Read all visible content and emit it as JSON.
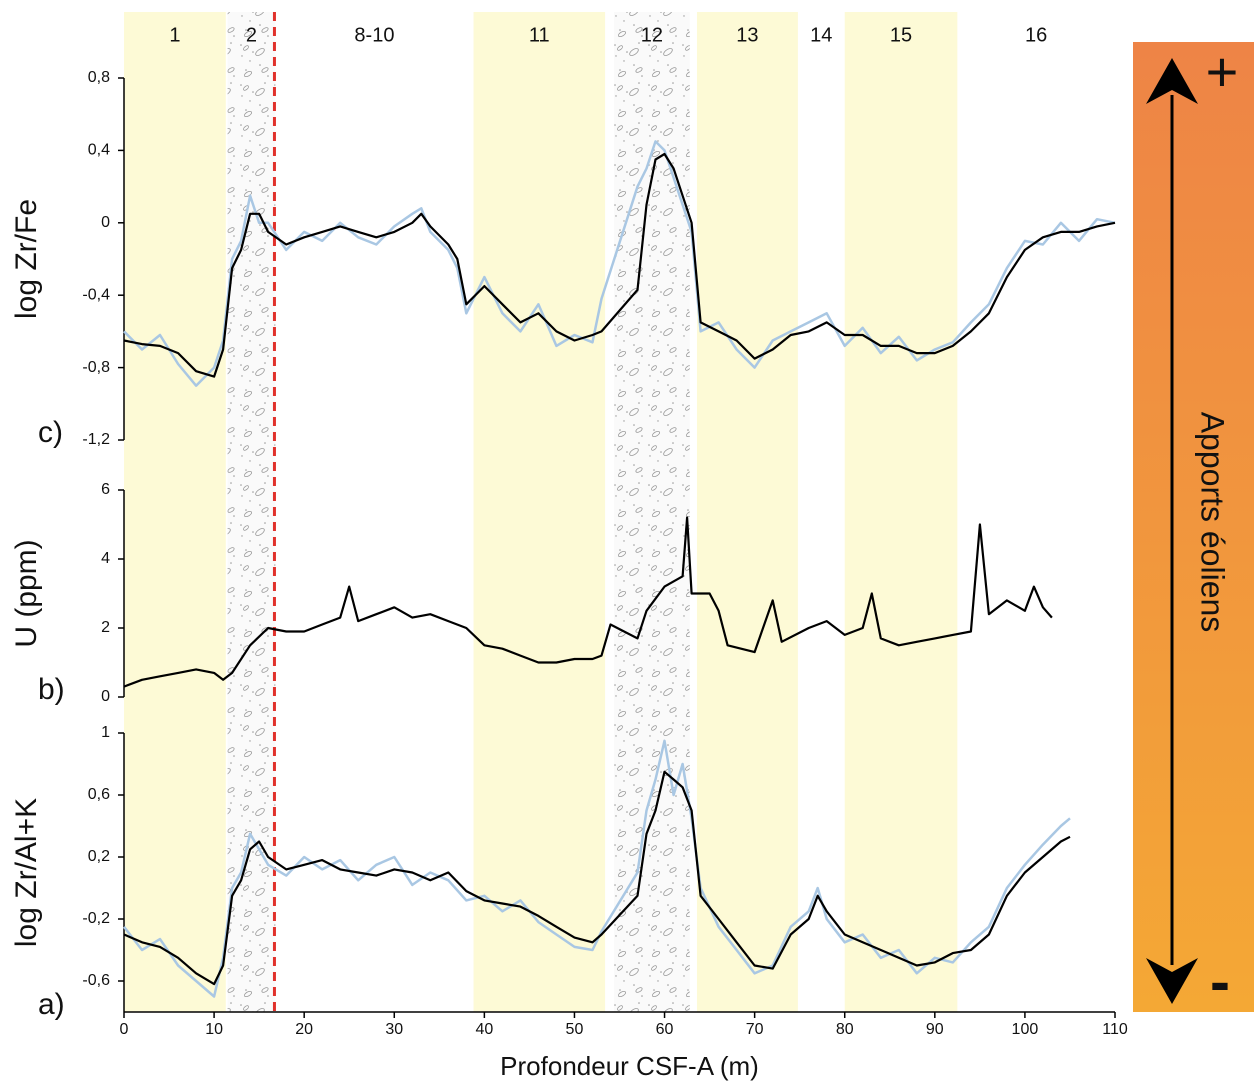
{
  "chart_data": [
    {
      "type": "line",
      "panel_label": "c)",
      "ylabel": "log Zr/Fe",
      "ylim": [
        -1.2,
        0.8
      ],
      "yticks": [
        {
          "value": 0.8,
          "label": "0,8"
        },
        {
          "value": 0.4,
          "label": "0,4"
        },
        0,
        {
          "value": -0.4,
          "label": "-0,4"
        },
        {
          "value": -0.8,
          "label": "-0,8"
        },
        {
          "value": -1.2,
          "label": "-1,2"
        }
      ],
      "series": [
        {
          "color": "#a9c7e3",
          "x": [
            0,
            2,
            4,
            6,
            8,
            10,
            11,
            12,
            13,
            14,
            15,
            16,
            18,
            20,
            22,
            24,
            26,
            28,
            30,
            32,
            33,
            34,
            36,
            37,
            38,
            40,
            42,
            44,
            46,
            48,
            50,
            52,
            53,
            57,
            58,
            59,
            60,
            61,
            62,
            63,
            64,
            66,
            68,
            70,
            72,
            74,
            76,
            78,
            80,
            82,
            84,
            86,
            88,
            90,
            92,
            94,
            96,
            98,
            100,
            102,
            104,
            106,
            108,
            110
          ],
          "values": [
            -0.6,
            -0.7,
            -0.62,
            -0.78,
            -0.9,
            -0.8,
            -0.65,
            -0.2,
            -0.1,
            0.15,
            0,
            0,
            -0.15,
            -0.05,
            -0.1,
            0,
            -0.08,
            -0.12,
            -0.02,
            0.05,
            0.08,
            -0.05,
            -0.15,
            -0.25,
            -0.5,
            -0.3,
            -0.5,
            -0.6,
            -0.45,
            -0.68,
            -0.62,
            -0.66,
            -0.42,
            0.2,
            0.3,
            0.45,
            0.4,
            0.25,
            0.1,
            -0.05,
            -0.6,
            -0.55,
            -0.7,
            -0.8,
            -0.65,
            -0.6,
            -0.55,
            -0.5,
            -0.68,
            -0.58,
            -0.72,
            -0.63,
            -0.76,
            -0.7,
            -0.66,
            -0.55,
            -0.45,
            -0.25,
            -0.1,
            -0.12,
            0,
            -0.1,
            0.02,
            0
          ]
        },
        {
          "color": "#000000",
          "x": [
            0,
            2,
            4,
            6,
            8,
            10,
            11,
            12,
            13,
            14,
            15,
            16,
            18,
            20,
            22,
            24,
            26,
            28,
            30,
            32,
            33,
            34,
            36,
            37,
            38,
            40,
            42,
            44,
            46,
            48,
            50,
            52,
            53,
            57,
            58,
            59,
            60,
            61,
            62,
            63,
            64,
            66,
            68,
            70,
            72,
            74,
            76,
            78,
            80,
            82,
            84,
            86,
            88,
            90,
            92,
            94,
            96,
            98,
            100,
            102,
            104,
            106,
            108,
            110
          ],
          "values": [
            -0.65,
            -0.67,
            -0.68,
            -0.72,
            -0.82,
            -0.85,
            -0.7,
            -0.25,
            -0.15,
            0.05,
            0.05,
            -0.05,
            -0.12,
            -0.08,
            -0.05,
            -0.02,
            -0.05,
            -0.08,
            -0.05,
            0,
            0.05,
            -0.02,
            -0.12,
            -0.2,
            -0.45,
            -0.35,
            -0.45,
            -0.55,
            -0.5,
            -0.6,
            -0.65,
            -0.62,
            -0.6,
            -0.37,
            0.1,
            0.35,
            0.38,
            0.3,
            0.15,
            0,
            -0.55,
            -0.6,
            -0.65,
            -0.75,
            -0.7,
            -0.62,
            -0.6,
            -0.55,
            -0.62,
            -0.62,
            -0.68,
            -0.68,
            -0.72,
            -0.72,
            -0.68,
            -0.6,
            -0.5,
            -0.3,
            -0.15,
            -0.08,
            -0.05,
            -0.05,
            -0.02,
            0
          ]
        }
      ]
    },
    {
      "type": "line",
      "panel_label": "b)",
      "ylabel": "U (ppm)",
      "ylim": [
        0,
        6
      ],
      "yticks": [
        6,
        4,
        2,
        0
      ],
      "series": [
        {
          "color": "#000000",
          "x": [
            0,
            2,
            4,
            6,
            8,
            10,
            11,
            12,
            14,
            16,
            18,
            20,
            22,
            24,
            25,
            26,
            28,
            30,
            32,
            34,
            36,
            38,
            40,
            42,
            44,
            46,
            48,
            50,
            52,
            53,
            54,
            57,
            58,
            60,
            62,
            62.5,
            63,
            65,
            66,
            67,
            70,
            72,
            73,
            76,
            78,
            80,
            82,
            83,
            84,
            86,
            88,
            90,
            92,
            94,
            95,
            96,
            98,
            100,
            101,
            102,
            103
          ],
          "values": [
            0.3,
            0.5,
            0.6,
            0.7,
            0.8,
            0.7,
            0.5,
            0.7,
            1.5,
            2,
            1.9,
            1.9,
            2.1,
            2.3,
            3.2,
            2.2,
            2.4,
            2.6,
            2.3,
            2.4,
            2.2,
            2,
            1.5,
            1.4,
            1.2,
            1,
            1,
            1.1,
            1.1,
            1.2,
            2.1,
            1.7,
            2.5,
            3.2,
            3.5,
            5.2,
            3,
            3,
            2.5,
            1.5,
            1.3,
            2.8,
            1.6,
            2,
            2.2,
            1.8,
            2,
            3,
            1.7,
            1.5,
            1.6,
            1.7,
            1.8,
            1.9,
            5,
            2.4,
            2.8,
            2.5,
            3.2,
            2.6,
            2.3
          ]
        }
      ]
    },
    {
      "type": "line",
      "panel_label": "a)",
      "ylabel": "log Zr/Al+K",
      "ylim": [
        -0.8,
        1
      ],
      "yticks": [
        1,
        {
          "value": 0.6,
          "label": "0,6"
        },
        {
          "value": 0.2,
          "label": "0,2"
        },
        {
          "value": -0.2,
          "label": "-0,2"
        },
        {
          "value": -0.6,
          "label": "-0,6"
        }
      ],
      "xlabel": "Profondeur CSF-A (m)",
      "xlim": [
        0,
        110
      ],
      "xticks": [
        0,
        10,
        20,
        30,
        40,
        50,
        60,
        70,
        80,
        90,
        100,
        110
      ],
      "series": [
        {
          "color": "#a9c7e3",
          "x": [
            0,
            2,
            4,
            6,
            8,
            10,
            11,
            12,
            13,
            14,
            15,
            16,
            18,
            20,
            22,
            24,
            26,
            28,
            30,
            32,
            34,
            36,
            38,
            40,
            42,
            44,
            46,
            48,
            50,
            52,
            53,
            57,
            58,
            59,
            60,
            61,
            62,
            63,
            64,
            66,
            68,
            70,
            72,
            74,
            76,
            77,
            78,
            80,
            82,
            84,
            86,
            88,
            90,
            92,
            94,
            96,
            98,
            100,
            102,
            104,
            105
          ],
          "values": [
            -0.25,
            -0.4,
            -0.33,
            -0.5,
            -0.6,
            -0.7,
            -0.45,
            0,
            0.1,
            0.35,
            0.25,
            0.15,
            0.08,
            0.2,
            0.12,
            0.18,
            0.05,
            0.15,
            0.2,
            0.02,
            0.1,
            0.05,
            -0.08,
            -0.05,
            -0.15,
            -0.08,
            -0.22,
            -0.3,
            -0.38,
            -0.4,
            -0.28,
            0.1,
            0.5,
            0.7,
            0.95,
            0.6,
            0.8,
            0.45,
            0,
            -0.25,
            -0.4,
            -0.55,
            -0.5,
            -0.25,
            -0.15,
            0,
            -0.2,
            -0.35,
            -0.3,
            -0.45,
            -0.4,
            -0.55,
            -0.45,
            -0.48,
            -0.35,
            -0.25,
            0,
            0.15,
            0.28,
            0.4,
            0.45
          ]
        },
        {
          "color": "#000000",
          "x": [
            0,
            2,
            4,
            6,
            8,
            10,
            11,
            12,
            13,
            14,
            15,
            16,
            18,
            20,
            22,
            24,
            26,
            28,
            30,
            32,
            34,
            36,
            38,
            40,
            42,
            44,
            46,
            48,
            50,
            52,
            53,
            57,
            58,
            59,
            60,
            61,
            62,
            63,
            64,
            66,
            68,
            70,
            72,
            74,
            76,
            77,
            78,
            80,
            82,
            84,
            86,
            88,
            90,
            92,
            94,
            96,
            98,
            100,
            102,
            104,
            105
          ],
          "values": [
            -0.3,
            -0.35,
            -0.38,
            -0.45,
            -0.55,
            -0.62,
            -0.5,
            -0.05,
            0.05,
            0.25,
            0.3,
            0.2,
            0.12,
            0.15,
            0.18,
            0.12,
            0.1,
            0.08,
            0.12,
            0.1,
            0.05,
            0.1,
            -0.02,
            -0.08,
            -0.1,
            -0.12,
            -0.18,
            -0.25,
            -0.32,
            -0.35,
            -0.3,
            -0.05,
            0.35,
            0.5,
            0.75,
            0.7,
            0.65,
            0.5,
            -0.05,
            -0.2,
            -0.35,
            -0.5,
            -0.52,
            -0.3,
            -0.2,
            -0.05,
            -0.15,
            -0.3,
            -0.35,
            -0.4,
            -0.45,
            -0.5,
            -0.48,
            -0.42,
            -0.4,
            -0.3,
            -0.05,
            0.1,
            0.2,
            0.3,
            0.33
          ]
        }
      ]
    }
  ],
  "units": [
    {
      "label": "1",
      "start": 0,
      "end": 11.3,
      "fill": "#fdfad6"
    },
    {
      "label": "2",
      "start": 11.5,
      "end": 16.8,
      "fill": "stipple"
    },
    {
      "label": "8-10",
      "start": 16.8,
      "end": 38.8,
      "fill": "none"
    },
    {
      "label": "11",
      "start": 38.8,
      "end": 53.4,
      "fill": "#fdfad6"
    },
    {
      "label": "12",
      "start": 54.4,
      "end": 62.8,
      "fill": "stipple"
    },
    {
      "label": "13",
      "start": 63.6,
      "end": 74.8,
      "fill": "#fdfad6"
    },
    {
      "label": "14",
      "start": 74.8,
      "end": 80,
      "fill": "none"
    },
    {
      "label": "15",
      "start": 80,
      "end": 92.5,
      "fill": "#fdfad6"
    },
    {
      "label": "16",
      "start": 92.5,
      "end": 110,
      "fill": "none"
    }
  ],
  "boundary": {
    "depth": 16.7,
    "color": "#e0312b"
  },
  "side_bar": {
    "label": "Apports éoliens",
    "plus": "+",
    "minus": "-",
    "colors": [
      "#ee8446",
      "#f4a835"
    ]
  }
}
